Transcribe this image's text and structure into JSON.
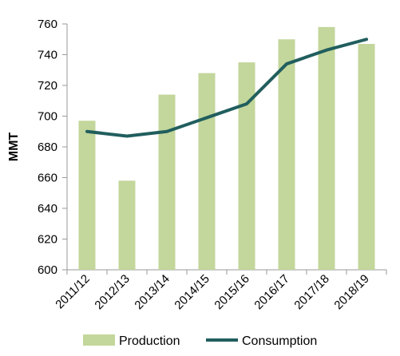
{
  "chart_data": {
    "type": "bar",
    "categories": [
      "2011/12",
      "2012/13",
      "2013/14",
      "2014/15",
      "2015/16",
      "2016/17",
      "2017/18",
      "2018/19"
    ],
    "series": [
      {
        "name": "Production",
        "type": "bar",
        "color": "#c3d69b",
        "values": [
          697,
          658,
          714,
          728,
          735,
          750,
          758,
          747
        ]
      },
      {
        "name": "Consumption",
        "type": "line",
        "color": "#215e5e",
        "values": [
          690,
          687,
          690,
          699,
          708,
          734,
          743,
          750
        ]
      }
    ],
    "title": "",
    "xlabel": "",
    "ylabel": "MMT",
    "ylim": [
      600,
      760
    ],
    "yticks": [
      "600",
      "620",
      "640",
      "660",
      "680",
      "700",
      "720",
      "740",
      "760"
    ],
    "grid": false,
    "legend": "bottom"
  }
}
